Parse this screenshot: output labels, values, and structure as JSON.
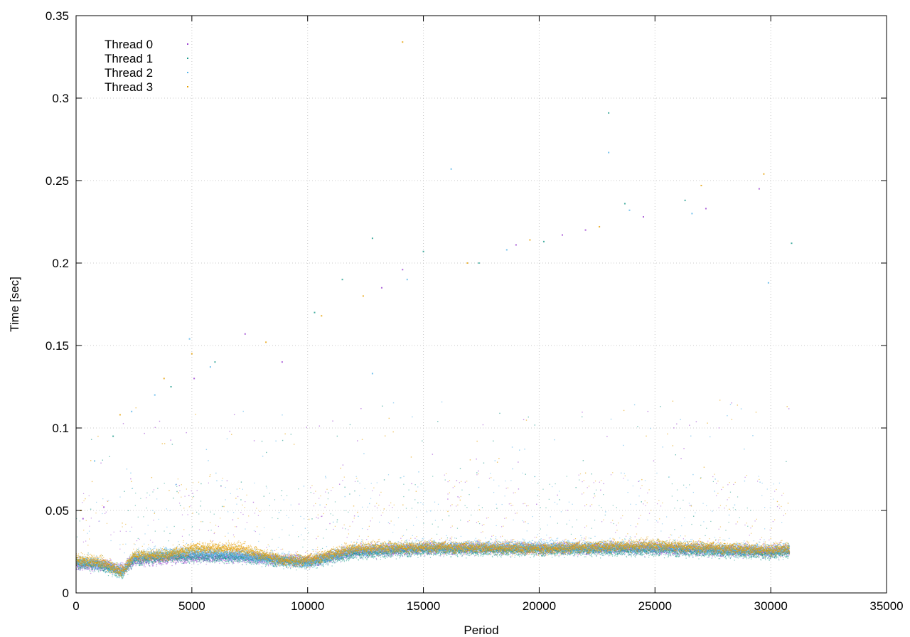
{
  "chart_data": {
    "type": "scatter",
    "title": "",
    "xlabel": "Period",
    "ylabel": "Time [sec]",
    "xlim": [
      0,
      35000
    ],
    "ylim": [
      0,
      0.35
    ],
    "x_ticks": [
      0,
      5000,
      10000,
      15000,
      20000,
      25000,
      30000,
      35000
    ],
    "y_ticks": [
      0,
      0.05,
      0.1,
      0.15,
      0.2,
      0.25,
      0.3,
      0.35
    ],
    "x_tick_labels": [
      "0",
      "5000",
      "10000",
      "15000",
      "20000",
      "25000",
      "30000",
      "35000"
    ],
    "y_tick_labels": [
      "0",
      "0.05",
      "0.1",
      "0.15",
      "0.2",
      "0.25",
      "0.3",
      "0.35"
    ],
    "grid": true,
    "legend_position": "top-left",
    "series": [
      {
        "name": "Thread 0",
        "color": "#9a3fd0",
        "baseline": [
          [
            0,
            0.017
          ],
          [
            1000,
            0.017
          ],
          [
            2000,
            0.014
          ],
          [
            2500,
            0.02
          ],
          [
            4000,
            0.021
          ],
          [
            5000,
            0.022
          ],
          [
            7000,
            0.022
          ],
          [
            9000,
            0.02
          ],
          [
            10000,
            0.019
          ],
          [
            12000,
            0.025
          ],
          [
            15000,
            0.027
          ],
          [
            20000,
            0.027
          ],
          [
            25000,
            0.027
          ],
          [
            30000,
            0.025
          ],
          [
            30800,
            0.026
          ]
        ],
        "outliers": [
          [
            300,
            0.045
          ],
          [
            1200,
            0.052
          ],
          [
            5100,
            0.13
          ],
          [
            7300,
            0.157
          ],
          [
            8900,
            0.14
          ],
          [
            13200,
            0.185
          ],
          [
            14100,
            0.196
          ],
          [
            19000,
            0.211
          ],
          [
            21000,
            0.217
          ],
          [
            22000,
            0.22
          ],
          [
            24500,
            0.228
          ],
          [
            27200,
            0.233
          ],
          [
            29500,
            0.245
          ]
        ]
      },
      {
        "name": "Thread 1",
        "color": "#1a9a8a",
        "baseline": [
          [
            0,
            0.018
          ],
          [
            1000,
            0.017
          ],
          [
            2000,
            0.012
          ],
          [
            2500,
            0.02
          ],
          [
            4000,
            0.022
          ],
          [
            5000,
            0.022
          ],
          [
            7000,
            0.022
          ],
          [
            9000,
            0.019
          ],
          [
            10000,
            0.018
          ],
          [
            12000,
            0.024
          ],
          [
            15000,
            0.026
          ],
          [
            20000,
            0.026
          ],
          [
            25000,
            0.026
          ],
          [
            30000,
            0.024
          ],
          [
            30800,
            0.025
          ]
        ],
        "outliers": [
          [
            1600,
            0.095
          ],
          [
            4100,
            0.125
          ],
          [
            6000,
            0.14
          ],
          [
            10300,
            0.17
          ],
          [
            11500,
            0.19
          ],
          [
            12800,
            0.215
          ],
          [
            15000,
            0.207
          ],
          [
            17400,
            0.2
          ],
          [
            20200,
            0.213
          ],
          [
            23000,
            0.291
          ],
          [
            23700,
            0.236
          ],
          [
            26300,
            0.238
          ],
          [
            30900,
            0.212
          ]
        ]
      },
      {
        "name": "Thread 2",
        "color": "#56b4e9",
        "baseline": [
          [
            0,
            0.019
          ],
          [
            1000,
            0.018
          ],
          [
            2000,
            0.013
          ],
          [
            2500,
            0.022
          ],
          [
            4000,
            0.024
          ],
          [
            5000,
            0.025
          ],
          [
            7000,
            0.023
          ],
          [
            9000,
            0.02
          ],
          [
            10000,
            0.019
          ],
          [
            12000,
            0.026
          ],
          [
            15000,
            0.028
          ],
          [
            20000,
            0.028
          ],
          [
            25000,
            0.028
          ],
          [
            30000,
            0.026
          ],
          [
            30800,
            0.027
          ]
        ],
        "outliers": [
          [
            800,
            0.08
          ],
          [
            2400,
            0.11
          ],
          [
            3400,
            0.12
          ],
          [
            4900,
            0.154
          ],
          [
            5800,
            0.137
          ],
          [
            12800,
            0.133
          ],
          [
            14300,
            0.19
          ],
          [
            16200,
            0.257
          ],
          [
            18600,
            0.208
          ],
          [
            23000,
            0.267
          ],
          [
            23900,
            0.232
          ],
          [
            26600,
            0.23
          ],
          [
            29900,
            0.188
          ]
        ]
      },
      {
        "name": "Thread 3",
        "color": "#e69f00",
        "baseline": [
          [
            0,
            0.02
          ],
          [
            1000,
            0.019
          ],
          [
            2000,
            0.013
          ],
          [
            2500,
            0.023
          ],
          [
            4000,
            0.023
          ],
          [
            5000,
            0.027
          ],
          [
            7000,
            0.027
          ],
          [
            9000,
            0.02
          ],
          [
            10000,
            0.02
          ],
          [
            12000,
            0.027
          ],
          [
            15000,
            0.028
          ],
          [
            20000,
            0.027
          ],
          [
            25000,
            0.029
          ],
          [
            30000,
            0.026
          ],
          [
            30800,
            0.027
          ]
        ],
        "outliers": [
          [
            200,
            0.05
          ],
          [
            1900,
            0.108
          ],
          [
            3800,
            0.13
          ],
          [
            5000,
            0.145
          ],
          [
            8200,
            0.152
          ],
          [
            10600,
            0.168
          ],
          [
            12400,
            0.18
          ],
          [
            14100,
            0.334
          ],
          [
            16900,
            0.2
          ],
          [
            19600,
            0.214
          ],
          [
            22600,
            0.222
          ],
          [
            27000,
            0.247
          ],
          [
            29700,
            0.254
          ]
        ]
      }
    ]
  }
}
